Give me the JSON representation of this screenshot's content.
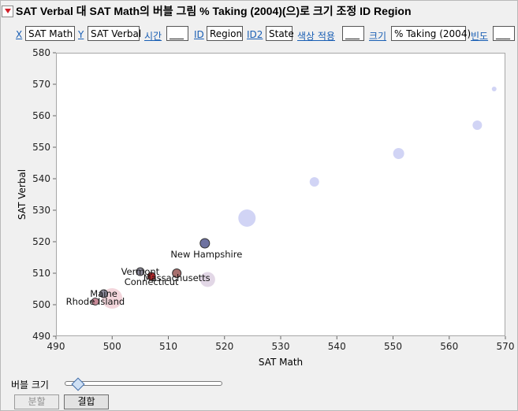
{
  "title": "SAT Verbal 대 SAT Math의 버블 그림 % Taking (2004)(으)로 크기 조정 ID Region",
  "roles": {
    "x_label": "X",
    "x_value": "SAT Math",
    "y_label": "Y",
    "y_value": "SAT Verbal",
    "time_label": "시간",
    "time_value": "___",
    "id_label": "ID",
    "id_value": "Region",
    "id2_label": "ID2",
    "id2_value": "State",
    "color_label": "색상 적용",
    "color_value": "___",
    "size_label": "크기",
    "size_value": "% Taking (2004)",
    "freq_label": "빈도",
    "freq_value": "___"
  },
  "controls": {
    "bubble_size_label": "버블 크기",
    "bubble_size_fraction": 0.08,
    "split_label": "분할",
    "combine_label": "결합"
  },
  "colors": {
    "highlight_outline": "#333333",
    "faded_lavender": "#c9cdf3",
    "faded_pink": "#f1cfd6"
  },
  "chart_data": {
    "type": "scatter",
    "title": "",
    "xlabel": "SAT Math",
    "ylabel": "SAT Verbal",
    "xlim": [
      490,
      570
    ],
    "ylim": [
      490,
      580
    ],
    "xticks": [
      490,
      500,
      510,
      520,
      530,
      540,
      550,
      560,
      570
    ],
    "yticks": [
      490,
      500,
      510,
      520,
      530,
      540,
      550,
      560,
      570,
      580
    ],
    "grid": false,
    "faded_points": [
      {
        "x": 568,
        "y": 568.5,
        "r": 3,
        "color": "#c9cdf3"
      },
      {
        "x": 565,
        "y": 557,
        "r": 6,
        "color": "#c9cdf3"
      },
      {
        "x": 551,
        "y": 548,
        "r": 7,
        "color": "#c9cdf3"
      },
      {
        "x": 536,
        "y": 539,
        "r": 6,
        "color": "#c9cdf3"
      },
      {
        "x": 524,
        "y": 527.5,
        "r": 11,
        "color": "#c9cdf3"
      },
      {
        "x": 517,
        "y": 508,
        "r": 9.5,
        "color": "#ddd0e2"
      },
      {
        "x": 500,
        "y": 502,
        "r": 13,
        "color": "#f1cfd6"
      }
    ],
    "highlighted_points": [
      {
        "label": "New Hampshire",
        "x": 516.5,
        "y": 519.5,
        "r": 6,
        "color": "#6e72a0",
        "label_dx": 2,
        "label_dy": 14
      },
      {
        "label": "Vermont",
        "x": 505,
        "y": 510.5,
        "r": 5,
        "color": "#8e8c9c",
        "label_dx": 0,
        "label_dy": 0
      },
      {
        "label": "Massachusetts",
        "x": 511.5,
        "y": 510,
        "r": 5.5,
        "color": "#a8706e",
        "label_dx": 0,
        "label_dy": 6
      },
      {
        "label": "Connecticut",
        "x": 507,
        "y": 509,
        "r": 5,
        "color": "#b0282a",
        "label_dx": 0,
        "label_dy": 7
      },
      {
        "label": "Maine",
        "x": 498.5,
        "y": 503.5,
        "r": 5,
        "color": "#8d8c9d",
        "label_dx": 0,
        "label_dy": 0
      },
      {
        "label": "Rhode Island",
        "x": 497,
        "y": 501,
        "r": 4.5,
        "color": "#c88a98",
        "label_dx": 0,
        "label_dy": 0
      }
    ]
  }
}
